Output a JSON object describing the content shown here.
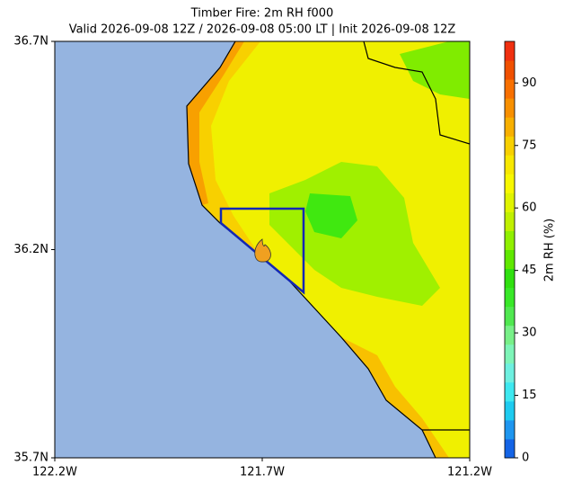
{
  "title": "Timber Fire: 2m RH f000",
  "subtitle": "Valid 2026-09-08 12Z / 2026-09-08 05:00 LT | Init 2026-09-08 12Z",
  "map": {
    "xlim": [
      -122.2,
      -121.2
    ],
    "xticks": [
      {
        "value": -122.2,
        "label": "122.2W"
      },
      {
        "value": -121.7,
        "label": "121.7W"
      },
      {
        "value": -121.2,
        "label": "121.2W"
      }
    ],
    "ylim": [
      35.7,
      36.7
    ],
    "yticks": [
      {
        "value": 35.7,
        "label": "35.7N"
      },
      {
        "value": 36.2,
        "label": "36.2N"
      },
      {
        "value": 36.7,
        "label": "36.7N"
      }
    ]
  },
  "colorbar": {
    "label": "2m RH (%)",
    "clim": [
      0,
      100
    ],
    "ticks": [
      0,
      15,
      30,
      45,
      60,
      75,
      90
    ],
    "colors": [
      "#1464e6",
      "#1e96f0",
      "#1ecbf0",
      "#3ee8f0",
      "#6ef0e0",
      "#7ef5b8",
      "#78f088",
      "#50e850",
      "#38e828",
      "#30e010",
      "#60e800",
      "#90f000",
      "#c0f000",
      "#e0f400",
      "#f8f800",
      "#f8e800",
      "#f8d000",
      "#f8b000",
      "#f89000",
      "#f87000",
      "#f05000",
      "#f03010"
    ]
  }
}
